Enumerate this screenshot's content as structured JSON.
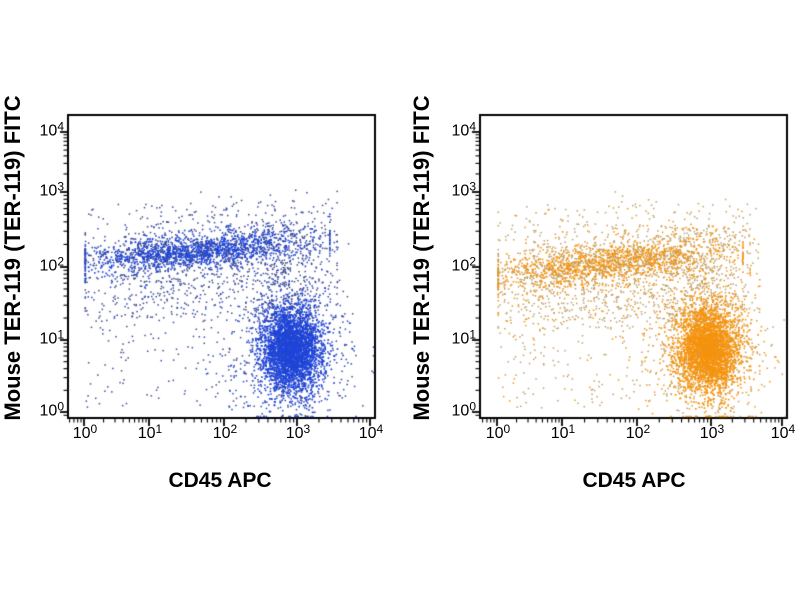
{
  "figure": {
    "background": "#ffffff"
  },
  "chart_data": [
    {
      "type": "scatter",
      "panel": "left",
      "xlabel": "CD45 APC",
      "ylabel": "Mouse TER-119 (TER-119) FITC",
      "x_scale": "log10",
      "y_scale": "log10",
      "xlim": [
        1,
        10000
      ],
      "ylim": [
        1,
        10000
      ],
      "tick_base": "10",
      "x_tick_exponents": [
        0,
        1,
        2,
        3,
        4
      ],
      "y_tick_exponents": [
        0,
        1,
        2,
        3,
        4
      ],
      "grid": false,
      "frame_color": "#000000",
      "dot_bright": "#1f45d8",
      "dot_sparse": "#3d4a90",
      "seed": 7,
      "populations": [
        {
          "name": "background-scatter",
          "n": 430,
          "x": {
            "dist": "uniform",
            "min": 0.02,
            "max": 3.68
          },
          "y": {
            "dist": "uniform",
            "min": 0.05,
            "max": 2.85
          },
          "bright_ratio": 0.1
        },
        {
          "name": "high-fitc-sprinkle",
          "n": 12,
          "x": {
            "dist": "uniform",
            "min": 1.4,
            "max": 3.5
          },
          "y": {
            "dist": "uniform",
            "min": 2.7,
            "max": 3.1
          },
          "bright_ratio": 0.1
        },
        {
          "name": "ter119-band-halo",
          "n": 430,
          "x": {
            "dist": "gauss",
            "mean": 1.65,
            "sigma": 0.95,
            "min": 0.02,
            "max": 3.55
          },
          "y": {
            "dist": "gauss",
            "mean": 2.07,
            "slope": 0.085,
            "sigma": 0.3
          },
          "bright_ratio": 0.15
        },
        {
          "name": "ter119-band-undertail",
          "n": 210,
          "x": {
            "dist": "gauss",
            "mean": 1.55,
            "sigma": 0.85,
            "min": 0.02,
            "max": 3.3
          },
          "y": {
            "dist": "uniform",
            "min": 1.3,
            "max": 1.92
          },
          "bright_ratio": 0.1
        },
        {
          "name": "cd45-mid-pillar",
          "n": 370,
          "x": {
            "dist": "gauss",
            "mean": 2.85,
            "sigma": 0.3
          },
          "y": {
            "dist": "uniform",
            "min": 1.25,
            "max": 2.6
          },
          "bright_ratio": 0.15
        },
        {
          "name": "ter119-band-core",
          "n": 1680,
          "x": {
            "dist": "gauss",
            "mean": 1.62,
            "sigma": 0.8,
            "min": 0.02,
            "max": 3.45
          },
          "y": {
            "dist": "gauss",
            "mean": 2.07,
            "slope": 0.085,
            "sigma": 0.115
          },
          "bright_ratio": 0.72,
          "dot": 1.6
        },
        {
          "name": "cd45-blob-halo",
          "n": 640,
          "x": {
            "dist": "gauss",
            "mean": 2.92,
            "sigma": 0.4
          },
          "y": {
            "dist": "gauss",
            "mean": 0.85,
            "sigma": 0.52
          },
          "bright_ratio": 0.5
        },
        {
          "name": "cd45-blob-core",
          "n": 3050,
          "x": {
            "dist": "gauss",
            "mean": 2.92,
            "sigma": 0.205
          },
          "y": {
            "dist": "gauss",
            "mean": 0.88,
            "sigma": 0.28
          },
          "bright_ratio": 0.97,
          "dot": 1.7
        }
      ]
    },
    {
      "type": "scatter",
      "panel": "right",
      "xlabel": "CD45 APC",
      "ylabel": "Mouse TER-119 (TER-119) FITC",
      "x_scale": "log10",
      "y_scale": "log10",
      "xlim": [
        1,
        10000
      ],
      "ylim": [
        1,
        10000
      ],
      "tick_base": "10",
      "x_tick_exponents": [
        0,
        1,
        2,
        3,
        4
      ],
      "y_tick_exponents": [
        0,
        1,
        2,
        3,
        4
      ],
      "grid": false,
      "frame_color": "#000000",
      "dot_bright": "#f5930e",
      "dot_sparse": "#c09f66",
      "seed": 13,
      "populations": [
        {
          "name": "background-scatter",
          "n": 500,
          "x": {
            "dist": "uniform",
            "min": 0.02,
            "max": 3.68
          },
          "y": {
            "dist": "uniform",
            "min": 0.05,
            "max": 2.85
          },
          "bright_ratio": 0.15
        },
        {
          "name": "high-fitc-sprinkle",
          "n": 12,
          "x": {
            "dist": "uniform",
            "min": 1.5,
            "max": 3.5
          },
          "y": {
            "dist": "uniform",
            "min": 2.7,
            "max": 3.1
          },
          "bright_ratio": 0.1
        },
        {
          "name": "ter119-band-halo",
          "n": 600,
          "x": {
            "dist": "gauss",
            "mean": 1.65,
            "sigma": 0.95,
            "min": 0.02,
            "max": 3.55
          },
          "y": {
            "dist": "gauss",
            "mean": 1.9,
            "slope": 0.09,
            "sigma": 0.33
          },
          "bright_ratio": 0.2
        },
        {
          "name": "ter119-band-undertail",
          "n": 240,
          "x": {
            "dist": "gauss",
            "mean": 1.6,
            "sigma": 0.85,
            "min": 0.02,
            "max": 3.3
          },
          "y": {
            "dist": "uniform",
            "min": 1.15,
            "max": 1.78
          },
          "bright_ratio": 0.15
        },
        {
          "name": "cd45-mid-pillar",
          "n": 410,
          "x": {
            "dist": "gauss",
            "mean": 2.82,
            "sigma": 0.32
          },
          "y": {
            "dist": "uniform",
            "min": 1.2,
            "max": 2.55
          },
          "bright_ratio": 0.2
        },
        {
          "name": "ter119-band-core",
          "n": 1500,
          "x": {
            "dist": "gauss",
            "mean": 1.6,
            "sigma": 0.82,
            "min": 0.02,
            "max": 3.45
          },
          "y": {
            "dist": "gauss",
            "mean": 1.9,
            "slope": 0.09,
            "sigma": 0.135
          },
          "bright_ratio": 0.7,
          "dot": 1.6
        },
        {
          "name": "cd45-blob-halo",
          "n": 730,
          "x": {
            "dist": "gauss",
            "mean": 2.97,
            "sigma": 0.42
          },
          "y": {
            "dist": "gauss",
            "mean": 0.85,
            "sigma": 0.53
          },
          "bright_ratio": 0.55
        },
        {
          "name": "cd45-blob-core",
          "n": 2950,
          "x": {
            "dist": "gauss",
            "mean": 2.97,
            "sigma": 0.215
          },
          "y": {
            "dist": "gauss",
            "mean": 0.88,
            "sigma": 0.29
          },
          "bright_ratio": 0.97,
          "dot": 1.7
        }
      ]
    }
  ]
}
